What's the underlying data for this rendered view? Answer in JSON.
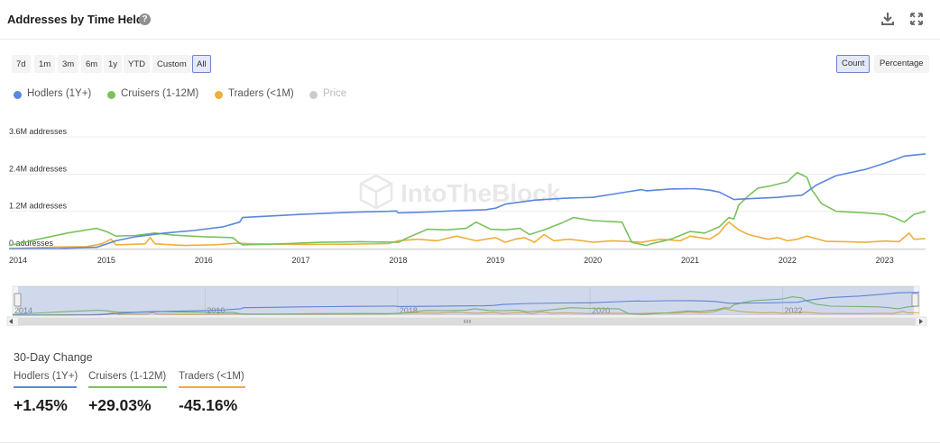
{
  "header": {
    "title": "Addresses by Time Held",
    "help_icon": "question-circle-icon"
  },
  "ranges": [
    "7d",
    "1m",
    "3m",
    "6m",
    "1y",
    "YTD",
    "Custom",
    "All"
  ],
  "active_range": "All",
  "modes": [
    "Count",
    "Percentage"
  ],
  "active_mode": "Count",
  "legend": [
    {
      "label": "Hodlers (1Y+)",
      "color": "#5b87da"
    },
    {
      "label": "Cruisers (1-12M)",
      "color": "#7ac25c"
    },
    {
      "label": "Traders (<1M)",
      "color": "#f0ae3a"
    },
    {
      "label": "Price",
      "color": "#cccccc"
    }
  ],
  "watermark": "IntoTheBlock",
  "change": {
    "title": "30-Day Change",
    "items": [
      {
        "label": "Hodlers (1Y+)",
        "value": "+1.45%",
        "color": "#5b87da"
      },
      {
        "label": "Cruisers (1-12M)",
        "value": "+29.03%",
        "color": "#7ac25c"
      },
      {
        "label": "Traders (<1M)",
        "value": "-45.16%",
        "color": "#f0ae3a"
      }
    ]
  },
  "chart_data": {
    "type": "line",
    "title": "Addresses by Time Held",
    "y_ticks": [
      "0 addresses",
      "1.2M addresses",
      "2.4M addresses",
      "3.6M addresses"
    ],
    "x_ticks": [
      "2014",
      "2015",
      "2016",
      "2017",
      "2018",
      "2019",
      "2020",
      "2021",
      "2022",
      "2023"
    ],
    "navigator_ticks": [
      "2014",
      "2016",
      "2018",
      "2020",
      "2022"
    ],
    "xlim": [
      2014.0,
      2023.42
    ],
    "ylim": [
      0,
      3600000
    ],
    "grid": true,
    "legend_position": "top-left",
    "series": [
      {
        "name": "Hodlers (1Y+)",
        "color": "#5b87da",
        "x": [
          2014.0,
          2014.5,
          2014.9,
          2015.1,
          2015.3,
          2015.6,
          2015.9,
          2016.2,
          2016.37,
          2016.4,
          2016.7,
          2017.0,
          2017.3,
          2017.6,
          2017.9,
          2017.98,
          2018.0,
          2018.3,
          2018.6,
          2018.9,
          2019.0,
          2019.1,
          2019.4,
          2019.7,
          2019.9,
          2020.0,
          2020.3,
          2020.5,
          2020.55,
          2020.8,
          2021.05,
          2021.2,
          2021.3,
          2021.45,
          2021.55,
          2021.7,
          2021.9,
          2022.0,
          2022.15,
          2022.3,
          2022.5,
          2022.8,
          2023.0,
          2023.1,
          2023.2,
          2023.42
        ],
        "values": [
          0,
          0,
          40000,
          250000,
          380000,
          500000,
          580000,
          700000,
          850000,
          1000000,
          1050000,
          1100000,
          1140000,
          1180000,
          1200000,
          1210000,
          1150000,
          1180000,
          1220000,
          1250000,
          1300000,
          1430000,
          1560000,
          1620000,
          1640000,
          1650000,
          1800000,
          1900000,
          1860000,
          1920000,
          1930000,
          1880000,
          1820000,
          1580000,
          1600000,
          1620000,
          1650000,
          1680000,
          1720000,
          2050000,
          2350000,
          2550000,
          2750000,
          2860000,
          2980000,
          3050000
        ]
      },
      {
        "name": "Cruisers (1-12M)",
        "color": "#7ac25c",
        "x": [
          2014.0,
          2014.3,
          2014.6,
          2014.9,
          2015.0,
          2015.1,
          2015.3,
          2015.5,
          2015.7,
          2016.0,
          2016.3,
          2016.35,
          2016.4,
          2016.8,
          2017.2,
          2017.6,
          2018.0,
          2018.1,
          2018.3,
          2018.5,
          2018.7,
          2018.8,
          2018.95,
          2019.1,
          2019.25,
          2019.35,
          2019.5,
          2019.7,
          2019.8,
          2020.0,
          2020.3,
          2020.4,
          2020.55,
          2020.6,
          2020.8,
          2021.0,
          2021.15,
          2021.3,
          2021.4,
          2021.45,
          2021.5,
          2021.6,
          2021.7,
          2021.8,
          2022.0,
          2022.1,
          2022.2,
          2022.25,
          2022.35,
          2022.5,
          2022.8,
          2023.0,
          2023.1,
          2023.2,
          2023.3,
          2023.42
        ],
        "values": [
          100000,
          300000,
          500000,
          650000,
          550000,
          400000,
          420000,
          500000,
          430000,
          380000,
          350000,
          220000,
          120000,
          150000,
          200000,
          220000,
          200000,
          350000,
          620000,
          600000,
          650000,
          850000,
          620000,
          600000,
          650000,
          450000,
          600000,
          850000,
          1000000,
          900000,
          850000,
          200000,
          100000,
          150000,
          300000,
          550000,
          500000,
          700000,
          1000000,
          950000,
          1400000,
          1700000,
          1950000,
          2000000,
          2150000,
          2450000,
          2300000,
          1900000,
          1450000,
          1200000,
          1150000,
          1100000,
          1000000,
          850000,
          1100000,
          1200000
        ]
      },
      {
        "name": "Traders (<1M)",
        "color": "#f0ae3a",
        "x": [
          2014.0,
          2014.5,
          2014.8,
          2014.95,
          2015.05,
          2015.1,
          2015.4,
          2015.45,
          2015.5,
          2015.8,
          2016.1,
          2016.35,
          2016.5,
          2017.0,
          2017.5,
          2017.9,
          2018.0,
          2018.2,
          2018.4,
          2018.6,
          2018.8,
          2019.0,
          2019.1,
          2019.2,
          2019.3,
          2019.4,
          2019.5,
          2019.6,
          2019.75,
          2019.9,
          2020.0,
          2020.2,
          2020.4,
          2020.5,
          2020.7,
          2020.9,
          2021.0,
          2021.1,
          2021.2,
          2021.3,
          2021.35,
          2021.4,
          2021.5,
          2021.6,
          2021.8,
          2021.9,
          2022.0,
          2022.1,
          2022.2,
          2022.4,
          2022.6,
          2022.8,
          2023.0,
          2023.15,
          2023.25,
          2023.3,
          2023.42
        ],
        "values": [
          0,
          50000,
          60000,
          150000,
          300000,
          120000,
          150000,
          350000,
          150000,
          100000,
          120000,
          170000,
          150000,
          130000,
          140000,
          160000,
          250000,
          300000,
          250000,
          400000,
          250000,
          350000,
          200000,
          300000,
          350000,
          200000,
          450000,
          250000,
          300000,
          250000,
          200000,
          250000,
          220000,
          200000,
          300000,
          250000,
          400000,
          350000,
          300000,
          500000,
          700000,
          850000,
          600000,
          450000,
          300000,
          350000,
          250000,
          300000,
          400000,
          230000,
          220000,
          200000,
          240000,
          220000,
          500000,
          300000,
          320000
        ]
      }
    ]
  }
}
